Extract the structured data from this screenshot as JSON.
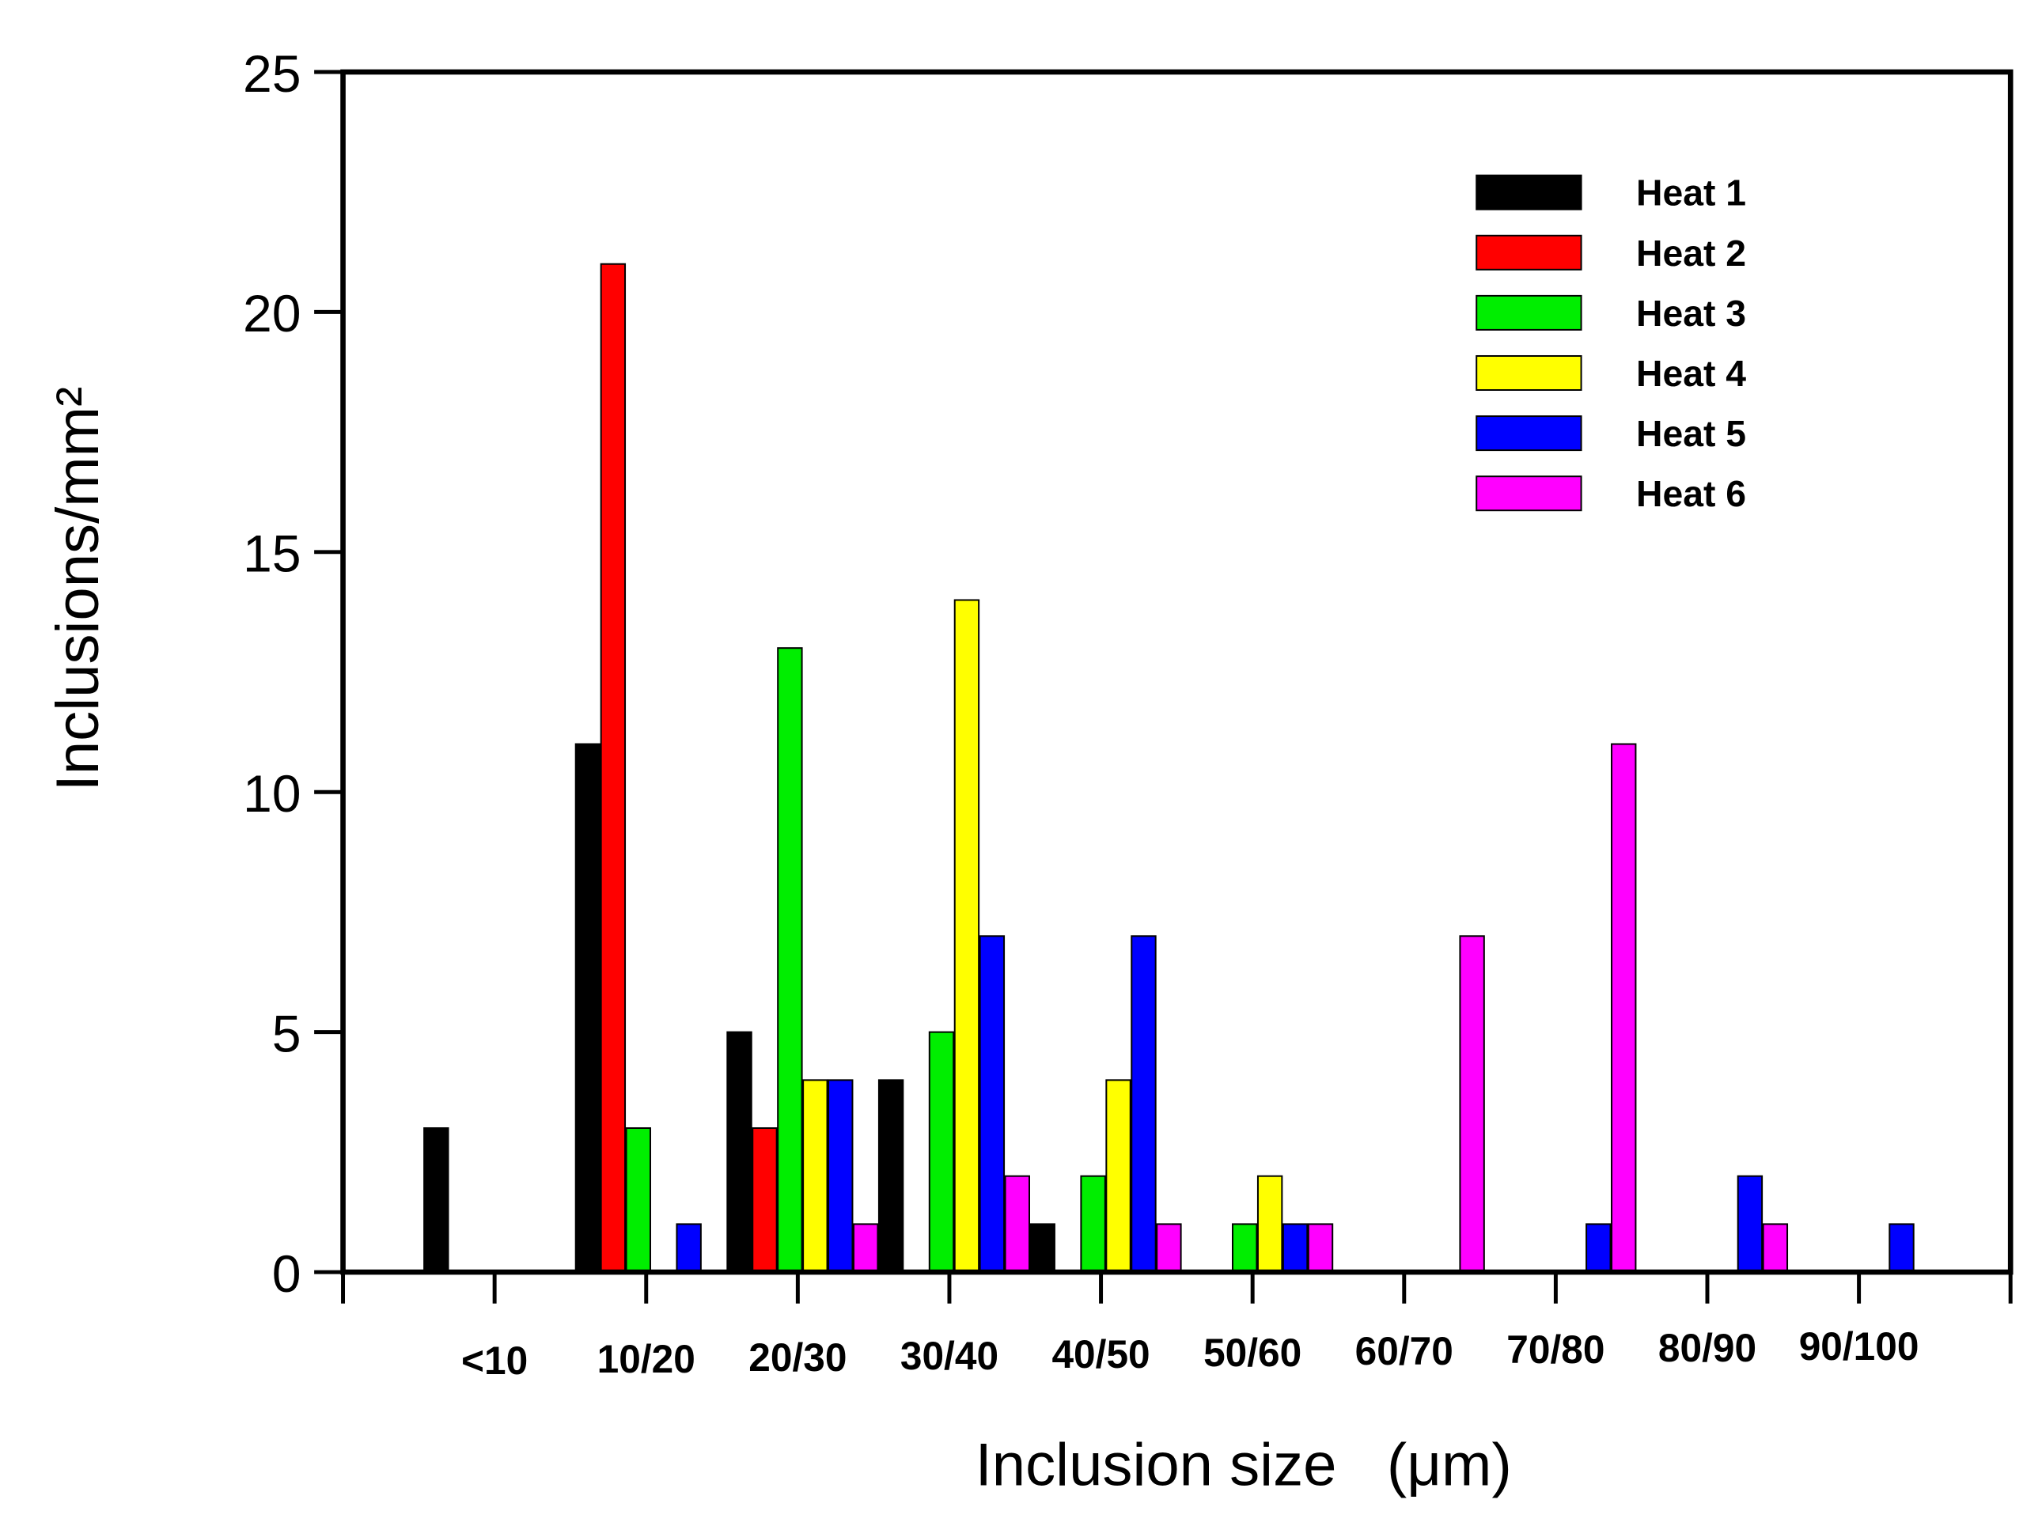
{
  "chart_data": {
    "type": "bar",
    "title": "",
    "xlabel": "Inclusion size   (μm)",
    "ylabel": "Inclusions/mm²",
    "ylim": [
      0,
      25
    ],
    "yticks": [
      "0",
      "5",
      "10",
      "15",
      "20",
      "25"
    ],
    "grid": false,
    "legend_position": "top-right",
    "categories": [
      "<10",
      "10/20",
      "20/30",
      "30/40",
      "40/50",
      "50/60",
      "60/70",
      "70/80",
      "80/90",
      "90/100"
    ],
    "series": [
      {
        "name": "Heat 1",
        "color": "#000000",
        "values": [
          3,
          11,
          5,
          4,
          1,
          0,
          0,
          0,
          0,
          0
        ]
      },
      {
        "name": "Heat 2",
        "color": "#ff0000",
        "values": [
          0,
          21,
          3,
          0,
          0,
          0,
          0,
          0,
          0,
          0
        ]
      },
      {
        "name": "Heat 3",
        "color": "#00ee00",
        "values": [
          0,
          3,
          13,
          5,
          2,
          1,
          0,
          0,
          0,
          0
        ]
      },
      {
        "name": "Heat 4",
        "color": "#ffff00",
        "values": [
          0,
          0,
          4,
          14,
          4,
          2,
          0,
          0,
          0,
          0
        ]
      },
      {
        "name": "Heat 5",
        "color": "#0000ff",
        "values": [
          0,
          1,
          4,
          7,
          7,
          1,
          0,
          1,
          2,
          1
        ]
      },
      {
        "name": "Heat 6",
        "color": "#ff00ff",
        "values": [
          0,
          0,
          1,
          2,
          1,
          1,
          7,
          11,
          1,
          0
        ]
      }
    ]
  }
}
